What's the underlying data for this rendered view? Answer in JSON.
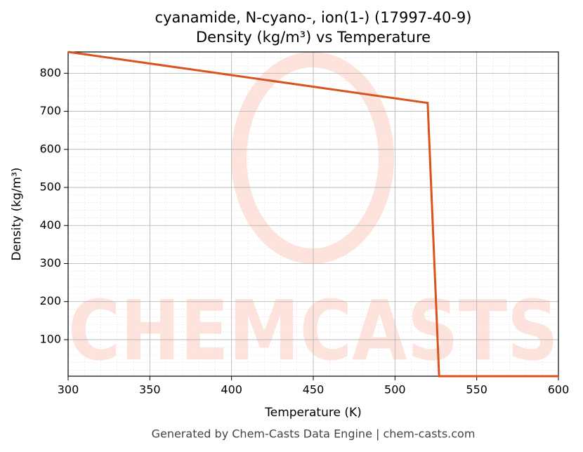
{
  "chart_data": {
    "type": "line",
    "title": "cyanamide, N-cyano-, ion(1-) (17997-40-9)",
    "subtitle": "Density (kg/m³) vs Temperature",
    "x_label": "Temperature (K)",
    "y_label": "Density (kg/m³)",
    "footer": "Generated by Chem-Casts Data Engine | chem-casts.com",
    "watermark": "CHEMCASTS",
    "x": [
      300,
      520,
      527,
      600
    ],
    "series": [
      {
        "name": "Density",
        "color": "#d9531e",
        "values": [
          856,
          722,
          4,
          4
        ]
      }
    ],
    "xlim": [
      300,
      600
    ],
    "xticks": [
      300,
      350,
      400,
      450,
      500,
      550,
      600
    ],
    "ylim": [
      4,
      856
    ],
    "yticks": [
      100,
      200,
      300,
      400,
      500,
      600,
      700,
      800
    ],
    "grid": true,
    "minor_grid": true
  }
}
